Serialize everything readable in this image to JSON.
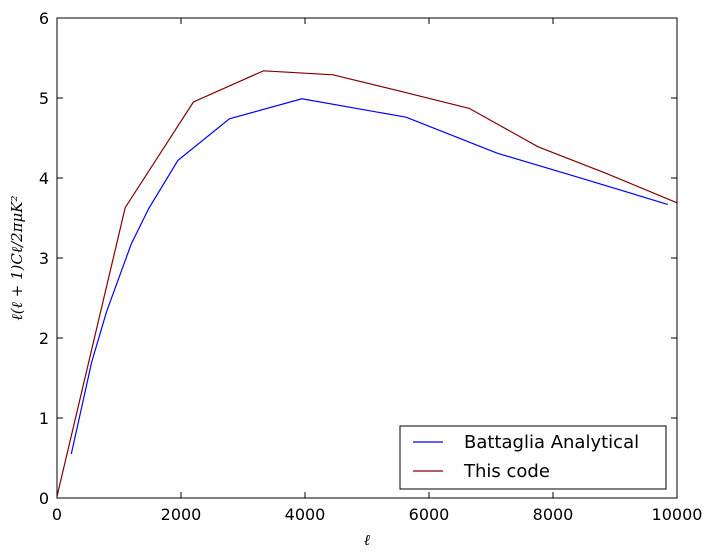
{
  "chart_data": {
    "type": "line",
    "xlabel": "ℓ",
    "ylabel": "ℓ(ℓ + 1)Cℓ/2πμK²",
    "xlim": [
      0,
      10000
    ],
    "ylim": [
      0,
      6
    ],
    "xticks": [
      0,
      2000,
      4000,
      6000,
      8000,
      10000
    ],
    "yticks": [
      0,
      1,
      2,
      3,
      4,
      5,
      6
    ],
    "grid": false,
    "legend_position": "lower-right",
    "series": [
      {
        "name": "Battaglia Analytical",
        "color": "#0000ff",
        "x": [
          230,
          560,
          800,
          1200,
          1480,
          1950,
          2780,
          3950,
          5630,
          7100,
          8400,
          9850
        ],
        "y": [
          0.55,
          1.7,
          2.33,
          3.18,
          3.62,
          4.22,
          4.74,
          4.99,
          4.76,
          4.31,
          4.01,
          3.67
        ]
      },
      {
        "name": "This code",
        "color": "#800000",
        "x": [
          0,
          1100,
          2200,
          3330,
          4450,
          5560,
          6650,
          7760,
          8850,
          10000
        ],
        "y": [
          0.02,
          3.63,
          4.95,
          5.34,
          5.29,
          5.08,
          4.87,
          4.39,
          4.06,
          3.69
        ]
      }
    ]
  }
}
